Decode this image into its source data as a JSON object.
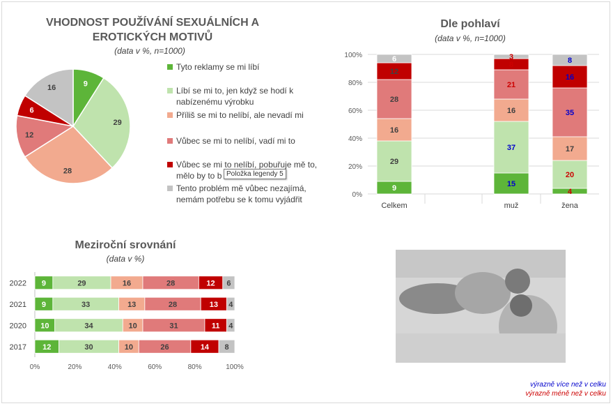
{
  "colors": {
    "c1": "#5db539",
    "c2": "#bfe3ad",
    "c3": "#f2aa8f",
    "c4": "#e07a7a",
    "c5": "#c00000",
    "c6": "#c3c3c3",
    "more": "#0000cc",
    "less": "#cc0000"
  },
  "pie": {
    "title": "VHODNOST POUŽÍVÁNÍ SEXUÁLNÍCH A EROTICKÝCH MOTIVŮ",
    "subtitle": "(data v %, n=1000)",
    "tooltip": "Položka legendy 5"
  },
  "gender": {
    "title": "Dle pohlaví",
    "subtitle": "(data v %, n=1000)"
  },
  "yearly": {
    "title": "Meziroční srovnání",
    "subtitle": "(data v %)"
  },
  "legend_notes": {
    "more": "výrazně více než v celku",
    "less": "výrazně méně než v celku"
  },
  "photo": {
    "icon": "photo-couple-icon"
  },
  "chart_data": [
    {
      "type": "pie",
      "categories": [
        "Tyto reklamy se mi líbí",
        "Líbí se mi to, jen když se hodí k nabízenému výrobku",
        "Příliš se mi to nelíbí, ale nevadí mi",
        "Vůbec se mi to nelíbí, vadí mi to",
        "Vůbec se mi to nelíbí, pobuřuje mě to, mělo by to b",
        "Tento problém mě vůbec nezajímá, nemám potřebu se k tomu vyjádřit"
      ],
      "values": [
        9,
        29,
        28,
        12,
        6,
        16
      ]
    },
    {
      "type": "bar",
      "stacked": true,
      "orientation": "vertical",
      "categories": [
        "Celkem",
        "",
        "muž",
        "žena"
      ],
      "yticks": [
        "0%",
        "20%",
        "40%",
        "60%",
        "80%",
        "100%"
      ],
      "ylim": [
        0,
        100
      ],
      "series": [
        {
          "values": [
            9,
            null,
            15,
            4
          ],
          "label_colors": [
            "#ffffff",
            null,
            "#0000cc",
            "#cc0000"
          ]
        },
        {
          "values": [
            29,
            null,
            37,
            20
          ],
          "label_colors": [
            "#404040",
            null,
            "#0000cc",
            "#cc0000"
          ]
        },
        {
          "values": [
            16,
            null,
            16,
            17
          ],
          "label_colors": [
            "#404040",
            null,
            "#404040",
            "#404040"
          ]
        },
        {
          "values": [
            28,
            null,
            21,
            35
          ],
          "label_colors": [
            "#404040",
            null,
            "#cc0000",
            "#0000cc"
          ]
        },
        {
          "values": [
            12,
            null,
            8,
            16
          ],
          "label_colors": [
            "#404040",
            null,
            "#cc0000",
            "#0000cc"
          ]
        },
        {
          "values": [
            6,
            null,
            3,
            8
          ],
          "label_colors": [
            "#ffffff",
            null,
            "#cc0000",
            "#0000cc"
          ]
        }
      ]
    },
    {
      "type": "bar",
      "stacked": true,
      "orientation": "horizontal",
      "categories": [
        "2022",
        "2021",
        "2020",
        "2017"
      ],
      "xticks": [
        "0%",
        "20%",
        "40%",
        "60%",
        "80%",
        "100%"
      ],
      "xlim": [
        0,
        100
      ],
      "series": [
        {
          "values": [
            9,
            9,
            10,
            12
          ]
        },
        {
          "values": [
            29,
            33,
            34,
            30
          ]
        },
        {
          "values": [
            16,
            13,
            10,
            10
          ]
        },
        {
          "values": [
            28,
            28,
            31,
            26
          ]
        },
        {
          "values": [
            12,
            13,
            11,
            14
          ]
        },
        {
          "values": [
            6,
            4,
            4,
            8
          ]
        }
      ]
    }
  ]
}
